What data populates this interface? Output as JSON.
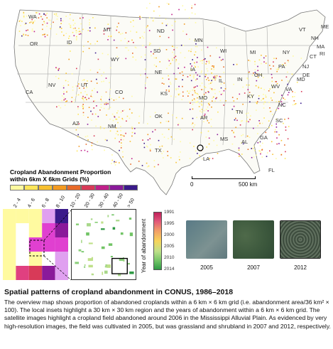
{
  "map": {
    "state_labels": [
      "WA",
      "OR",
      "ID",
      "MT",
      "ND",
      "MN",
      "WI",
      "MI",
      "NY",
      "VT",
      "NH",
      "ME",
      "MA",
      "CT",
      "RI",
      "NJ",
      "DE",
      "MD",
      "PA",
      "OH",
      "IN",
      "IL",
      "IA",
      "SD",
      "NE",
      "WY",
      "NV",
      "CA",
      "UT",
      "CO",
      "KS",
      "MO",
      "KY",
      "WV",
      "VA",
      "NC",
      "TN",
      "AR",
      "OK",
      "AZ",
      "NM",
      "TX",
      "LA",
      "MS",
      "AL",
      "GA",
      "SC",
      "FL"
    ]
  },
  "legend": {
    "title_line1": "Cropland Abandonment Proportion",
    "title_line2": "within 6km X 6km Grids (%)",
    "classes": [
      "2 - 4",
      "4 - 6",
      "6 - 8",
      "8 - 10",
      "10 - 20",
      "20 - 30",
      "30 - 40",
      "40 - 50",
      "> 50"
    ],
    "colors": [
      "#fffaa0",
      "#fde65a",
      "#f7c030",
      "#f39a20",
      "#e86a28",
      "#d83a58",
      "#c0208a",
      "#8a1a9a",
      "#3a1a8a"
    ]
  },
  "scalebar": {
    "start": "0",
    "end": "500 km"
  },
  "year_bar": {
    "label": "Year of abandonment",
    "ticks": [
      "1991",
      "1995",
      "2000",
      "2005",
      "2010",
      "2014"
    ]
  },
  "satellite": {
    "years": [
      "2005",
      "2007",
      "2012"
    ]
  },
  "caption": {
    "title": "Spatial patterns of cropland abandonment in CONUS, 1986–2018",
    "body": "The overview map shows proportion of abandoned croplands within a 6 km × 6 km grid (i.e. abandonment area/36 km² × 100). The local insets highlight a 30 km × 30 km region and the years of abandonment within a 6 km × 6 km grid. The satellite images highlight a cropland field abandoned around 2006 in the Mississippi Alluvial Plain. As evidenced by very high-resolution images, the field was cultivated in 2005, but was grassland and shrubland in 2007 and 2012, respectively."
  }
}
